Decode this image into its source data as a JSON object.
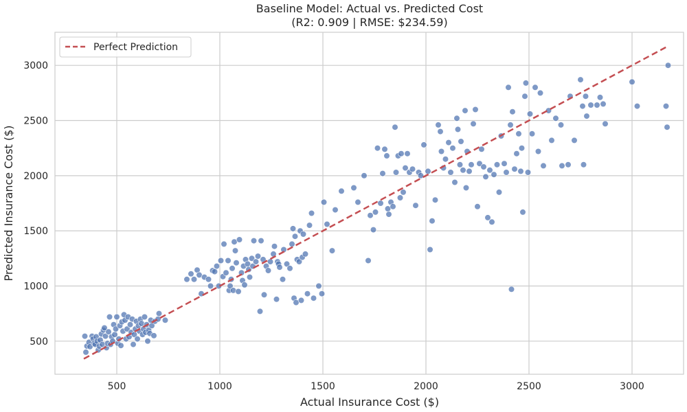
{
  "chart_data": {
    "type": "scatter",
    "title": "Baseline Model: Actual vs. Predicted Cost",
    "subtitle": "(R2: 0.909 | RMSE: $234.59)",
    "xlabel": "Actual Insurance Cost ($)",
    "ylabel": "Predicted Insurance Cost ($)",
    "xlim": [
      200,
      3250
    ],
    "ylim": [
      200,
      3300
    ],
    "xticks": [
      500,
      1000,
      1500,
      2000,
      2500,
      3000
    ],
    "yticks": [
      500,
      1000,
      1500,
      2000,
      2500,
      3000
    ],
    "grid": true,
    "legend_position": "top-left",
    "series": [
      {
        "name": "Perfect Prediction",
        "kind": "line",
        "style": "dashed",
        "color": "#c44e52",
        "x": [
          340,
          3175
        ],
        "y": [
          340,
          3175
        ]
      },
      {
        "kind": "scatter",
        "color": "#4c72b0",
        "points": [
          [
            345,
            545
          ],
          [
            350,
            400
          ],
          [
            355,
            455
          ],
          [
            365,
            490
          ],
          [
            370,
            450
          ],
          [
            380,
            545
          ],
          [
            385,
            520
          ],
          [
            390,
            480
          ],
          [
            395,
            470
          ],
          [
            400,
            540
          ],
          [
            405,
            500
          ],
          [
            410,
            420
          ],
          [
            415,
            455
          ],
          [
            420,
            510
          ],
          [
            425,
            565
          ],
          [
            430,
            470
          ],
          [
            435,
            600
          ],
          [
            440,
            620
          ],
          [
            445,
            545
          ],
          [
            450,
            440
          ],
          [
            455,
            480
          ],
          [
            460,
            585
          ],
          [
            465,
            720
          ],
          [
            470,
            470
          ],
          [
            475,
            540
          ],
          [
            480,
            500
          ],
          [
            485,
            650
          ],
          [
            490,
            560
          ],
          [
            495,
            610
          ],
          [
            500,
            720
          ],
          [
            505,
            480
          ],
          [
            510,
            520
          ],
          [
            515,
            640
          ],
          [
            520,
            460
          ],
          [
            525,
            675
          ],
          [
            530,
            590
          ],
          [
            535,
            740
          ],
          [
            540,
            690
          ],
          [
            545,
            520
          ],
          [
            550,
            610
          ],
          [
            555,
            720
          ],
          [
            560,
            540
          ],
          [
            565,
            650
          ],
          [
            570,
            580
          ],
          [
            575,
            700
          ],
          [
            580,
            470
          ],
          [
            585,
            560
          ],
          [
            590,
            610
          ],
          [
            595,
            680
          ],
          [
            600,
            520
          ],
          [
            605,
            640
          ],
          [
            610,
            590
          ],
          [
            615,
            700
          ],
          [
            620,
            660
          ],
          [
            625,
            560
          ],
          [
            630,
            610
          ],
          [
            635,
            720
          ],
          [
            640,
            580
          ],
          [
            645,
            650
          ],
          [
            650,
            500
          ],
          [
            655,
            600
          ],
          [
            660,
            570
          ],
          [
            665,
            690
          ],
          [
            670,
            640
          ],
          [
            680,
            550
          ],
          [
            685,
            680
          ],
          [
            700,
            700
          ],
          [
            705,
            750
          ],
          [
            735,
            690
          ],
          [
            840,
            1060
          ],
          [
            860,
            1110
          ],
          [
            875,
            1060
          ],
          [
            890,
            1145
          ],
          [
            900,
            1100
          ],
          [
            910,
            930
          ],
          [
            925,
            1080
          ],
          [
            945,
            1060
          ],
          [
            955,
            1000
          ],
          [
            965,
            1140
          ],
          [
            975,
            1130
          ],
          [
            985,
            1180
          ],
          [
            995,
            1000
          ],
          [
            1005,
            1230
          ],
          [
            1015,
            1085
          ],
          [
            1020,
            1380
          ],
          [
            1030,
            1120
          ],
          [
            1040,
            1230
          ],
          [
            1045,
            960
          ],
          [
            1050,
            1000
          ],
          [
            1055,
            1060
          ],
          [
            1060,
            1160
          ],
          [
            1065,
            960
          ],
          [
            1070,
            1400
          ],
          [
            1075,
            1320
          ],
          [
            1080,
            1210
          ],
          [
            1090,
            950
          ],
          [
            1095,
            1420
          ],
          [
            1105,
            1120
          ],
          [
            1110,
            1050
          ],
          [
            1115,
            1180
          ],
          [
            1120,
            1010
          ],
          [
            1125,
            1240
          ],
          [
            1135,
            1200
          ],
          [
            1140,
            1150
          ],
          [
            1145,
            1080
          ],
          [
            1155,
            1250
          ],
          [
            1160,
            1180
          ],
          [
            1165,
            1410
          ],
          [
            1175,
            1220
          ],
          [
            1185,
            1270
          ],
          [
            1195,
            770
          ],
          [
            1200,
            1410
          ],
          [
            1210,
            1240
          ],
          [
            1215,
            920
          ],
          [
            1225,
            1180
          ],
          [
            1235,
            1140
          ],
          [
            1245,
            1220
          ],
          [
            1260,
            1290
          ],
          [
            1265,
            1360
          ],
          [
            1275,
            880
          ],
          [
            1280,
            1220
          ],
          [
            1285,
            1200
          ],
          [
            1290,
            1170
          ],
          [
            1305,
            1060
          ],
          [
            1310,
            1330
          ],
          [
            1325,
            1200
          ],
          [
            1340,
            1160
          ],
          [
            1350,
            1380
          ],
          [
            1355,
            1520
          ],
          [
            1360,
            890
          ],
          [
            1365,
            1450
          ],
          [
            1370,
            850
          ],
          [
            1375,
            1240
          ],
          [
            1385,
            1220
          ],
          [
            1390,
            1500
          ],
          [
            1395,
            870
          ],
          [
            1400,
            1260
          ],
          [
            1405,
            1470
          ],
          [
            1415,
            1290
          ],
          [
            1425,
            930
          ],
          [
            1435,
            1550
          ],
          [
            1445,
            1660
          ],
          [
            1455,
            890
          ],
          [
            1480,
            1000
          ],
          [
            1495,
            930
          ],
          [
            1505,
            1760
          ],
          [
            1520,
            1560
          ],
          [
            1545,
            1320
          ],
          [
            1560,
            1690
          ],
          [
            1590,
            1860
          ],
          [
            1650,
            1890
          ],
          [
            1670,
            1760
          ],
          [
            1700,
            2000
          ],
          [
            1720,
            1230
          ],
          [
            1730,
            1640
          ],
          [
            1745,
            1510
          ],
          [
            1755,
            1670
          ],
          [
            1765,
            2250
          ],
          [
            1780,
            1750
          ],
          [
            1790,
            2020
          ],
          [
            1800,
            2240
          ],
          [
            1810,
            2180
          ],
          [
            1815,
            1700
          ],
          [
            1820,
            1650
          ],
          [
            1830,
            1760
          ],
          [
            1840,
            1720
          ],
          [
            1850,
            2440
          ],
          [
            1855,
            2030
          ],
          [
            1865,
            2180
          ],
          [
            1875,
            1800
          ],
          [
            1880,
            2200
          ],
          [
            1890,
            1850
          ],
          [
            1900,
            2070
          ],
          [
            1910,
            2200
          ],
          [
            1920,
            2030
          ],
          [
            1935,
            2060
          ],
          [
            1950,
            1730
          ],
          [
            1965,
            2030
          ],
          [
            1975,
            2000
          ],
          [
            1990,
            2280
          ],
          [
            2010,
            2040
          ],
          [
            2020,
            1330
          ],
          [
            2030,
            1590
          ],
          [
            2045,
            1780
          ],
          [
            2060,
            2460
          ],
          [
            2070,
            2400
          ],
          [
            2075,
            2220
          ],
          [
            2085,
            2070
          ],
          [
            2095,
            2150
          ],
          [
            2110,
            2300
          ],
          [
            2120,
            2030
          ],
          [
            2130,
            2250
          ],
          [
            2140,
            1940
          ],
          [
            2150,
            2520
          ],
          [
            2155,
            2420
          ],
          [
            2165,
            2100
          ],
          [
            2170,
            2310
          ],
          [
            2180,
            2050
          ],
          [
            2190,
            2590
          ],
          [
            2195,
            1890
          ],
          [
            2200,
            2220
          ],
          [
            2210,
            2040
          ],
          [
            2220,
            2100
          ],
          [
            2230,
            2470
          ],
          [
            2240,
            2600
          ],
          [
            2250,
            1720
          ],
          [
            2260,
            2110
          ],
          [
            2270,
            2240
          ],
          [
            2280,
            2080
          ],
          [
            2290,
            1990
          ],
          [
            2300,
            1620
          ],
          [
            2310,
            2050
          ],
          [
            2320,
            1580
          ],
          [
            2330,
            2010
          ],
          [
            2345,
            2100
          ],
          [
            2355,
            1850
          ],
          [
            2365,
            2360
          ],
          [
            2380,
            2110
          ],
          [
            2390,
            2030
          ],
          [
            2400,
            2800
          ],
          [
            2410,
            2460
          ],
          [
            2415,
            970
          ],
          [
            2420,
            2580
          ],
          [
            2430,
            2060
          ],
          [
            2440,
            2200
          ],
          [
            2450,
            2380
          ],
          [
            2460,
            2040
          ],
          [
            2465,
            2250
          ],
          [
            2470,
            1670
          ],
          [
            2480,
            2720
          ],
          [
            2485,
            2840
          ],
          [
            2495,
            2030
          ],
          [
            2505,
            2560
          ],
          [
            2515,
            2380
          ],
          [
            2530,
            2800
          ],
          [
            2545,
            2220
          ],
          [
            2555,
            2750
          ],
          [
            2570,
            2090
          ],
          [
            2595,
            2590
          ],
          [
            2610,
            2320
          ],
          [
            2630,
            2520
          ],
          [
            2655,
            2460
          ],
          [
            2660,
            2090
          ],
          [
            2690,
            2100
          ],
          [
            2700,
            2720
          ],
          [
            2720,
            2320
          ],
          [
            2750,
            2870
          ],
          [
            2760,
            2630
          ],
          [
            2765,
            2100
          ],
          [
            2775,
            2720
          ],
          [
            2780,
            2540
          ],
          [
            2800,
            2640
          ],
          [
            2830,
            2640
          ],
          [
            2845,
            2710
          ],
          [
            2860,
            2650
          ],
          [
            2870,
            2470
          ],
          [
            3000,
            2850
          ],
          [
            3025,
            2630
          ],
          [
            3165,
            2630
          ],
          [
            3170,
            2440
          ],
          [
            3175,
            3000
          ]
        ]
      }
    ]
  }
}
